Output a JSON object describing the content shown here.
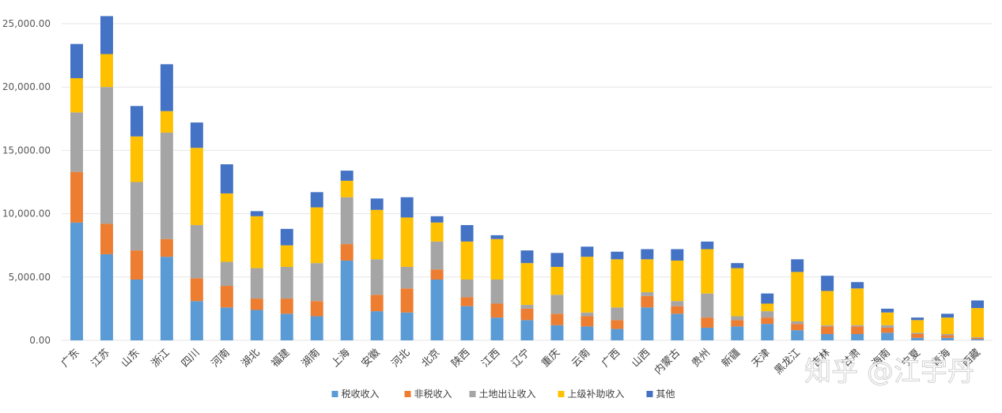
{
  "chart_data": {
    "type": "bar",
    "stacked": true,
    "categories": [
      "广东",
      "江苏",
      "山东",
      "浙江",
      "四川",
      "河南",
      "湖北",
      "福建",
      "湖南",
      "上海",
      "安徽",
      "河北",
      "北京",
      "陕西",
      "江西",
      "辽宁",
      "重庆",
      "云南",
      "广西",
      "山西",
      "内蒙古",
      "贵州",
      "新疆",
      "天津",
      "黑龙江",
      "吉林",
      "甘肃",
      "海南",
      "宁夏",
      "青海",
      "西藏"
    ],
    "series": [
      {
        "name": "税收收入",
        "color": "#5b9bd5",
        "values": [
          9300,
          6800,
          4800,
          6600,
          3100,
          2600,
          2400,
          2100,
          1900,
          6300,
          2300,
          2200,
          4800,
          2700,
          1800,
          1600,
          1200,
          1100,
          900,
          2600,
          2100,
          1000,
          1100,
          1300,
          800,
          500,
          500,
          600,
          200,
          200,
          100
        ]
      },
      {
        "name": "非税收入",
        "color": "#ed7d31",
        "values": [
          4000,
          2400,
          2300,
          1400,
          1800,
          1700,
          900,
          1200,
          1200,
          1300,
          1300,
          1900,
          800,
          700,
          1100,
          900,
          900,
          800,
          700,
          900,
          600,
          800,
          500,
          500,
          500,
          600,
          600,
          400,
          300,
          200,
          100
        ]
      },
      {
        "name": "土地出让收入",
        "color": "#a5a5a5",
        "values": [
          4700,
          10800,
          5400,
          8400,
          4200,
          1900,
          2400,
          2500,
          3000,
          3700,
          2800,
          1700,
          2200,
          1400,
          1900,
          300,
          1500,
          300,
          1000,
          300,
          400,
          1900,
          300,
          500,
          200,
          100,
          100,
          200,
          100,
          100,
          50
        ]
      },
      {
        "name": "上级补助收入",
        "color": "#ffc000",
        "values": [
          2700,
          2600,
          3600,
          1700,
          6100,
          5400,
          4100,
          1700,
          4400,
          1300,
          3900,
          3900,
          1500,
          3000,
          3200,
          3300,
          2200,
          4400,
          3800,
          2600,
          3200,
          3500,
          3800,
          600,
          3900,
          2700,
          2900,
          1000,
          1000,
          1300,
          2300
        ]
      },
      {
        "name": "其他",
        "color": "#4472c4",
        "values": [
          2700,
          3000,
          2400,
          3700,
          2000,
          2300,
          400,
          1300,
          1200,
          800,
          900,
          1600,
          500,
          1300,
          300,
          1000,
          1100,
          800,
          600,
          800,
          900,
          600,
          400,
          800,
          1000,
          1200,
          500,
          300,
          200,
          300,
          600
        ]
      }
    ],
    "yticks": [
      "0.00",
      "5,000.00",
      "10,000.00",
      "15,000.00",
      "20,000.00",
      "25,000.00"
    ],
    "ylim": [
      0,
      25500
    ],
    "grid": true,
    "legend_position": "bottom",
    "title": "",
    "xlabel": "",
    "ylabel": ""
  },
  "watermark": {
    "text": "知乎 @江宇丹",
    "color": "#c9c9c9"
  }
}
